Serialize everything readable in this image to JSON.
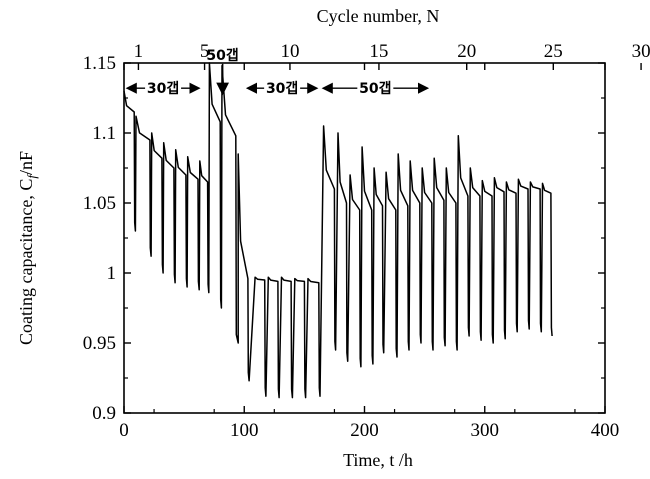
{
  "chart_data": {
    "type": "line",
    "title": "",
    "xlabel": "Time, t /h",
    "ylabel": "Coating capacitance, C_f/nF",
    "top_xlabel": "Cycle number, N",
    "xlim": [
      0,
      400
    ],
    "ylim": [
      0.9,
      1.15
    ],
    "x_ticks": [
      0,
      100,
      200,
      300,
      400
    ],
    "x_tick_labels": [
      "0",
      "100",
      "200",
      "300",
      "400"
    ],
    "y_ticks": [
      0.9,
      0.95,
      1.0,
      1.05,
      1.1,
      1.15
    ],
    "y_tick_labels": [
      "0.9",
      "0.95",
      "1",
      "1.05",
      "1.1",
      "1.15"
    ],
    "top_ticks": [
      {
        "label": "1",
        "x": 12
      },
      {
        "label": "5",
        "x": 67
      },
      {
        "label": "10",
        "x": 138
      },
      {
        "label": "15",
        "x": 212
      },
      {
        "label": "20",
        "x": 285
      },
      {
        "label": "25",
        "x": 357
      },
      {
        "label": "30",
        "x": 430
      }
    ],
    "annotations": [
      {
        "text": "30갭",
        "x_from": 0,
        "x_to": 65,
        "y": 1.132
      },
      {
        "text": "50갭",
        "x": 82,
        "y": 1.148,
        "arrow_down_to": 1.128
      },
      {
        "text": "30갭",
        "x_from": 100,
        "x_to": 163,
        "y": 1.132
      },
      {
        "text": "50갭",
        "x_from": 163,
        "x_to": 255,
        "y": 1.132
      }
    ],
    "series": [
      {
        "cycles": [
          {
            "x_start": 0,
            "x_end": 8.5,
            "y_high": 1.13,
            "y_end": 1.115,
            "y_low": 1.03,
            "x_low_end": 9.5
          },
          {
            "x_start": 10,
            "x_end": 21.5,
            "y_high": 1.112,
            "y_end": 1.095,
            "y_low": 1.012,
            "x_low_end": 22.5
          },
          {
            "x_start": 23,
            "x_end": 31.5,
            "y_high": 1.1,
            "y_end": 1.082,
            "y_low": 1.0,
            "x_low_end": 32.5
          },
          {
            "x_start": 33,
            "x_end": 41.5,
            "y_high": 1.093,
            "y_end": 1.075,
            "y_low": 0.993,
            "x_low_end": 42.5
          },
          {
            "x_start": 43,
            "x_end": 51.5,
            "y_high": 1.088,
            "y_end": 1.07,
            "y_low": 0.99,
            "x_low_end": 52.5
          },
          {
            "x_start": 53,
            "x_end": 61.5,
            "y_high": 1.083,
            "y_end": 1.067,
            "y_low": 0.988,
            "x_low_end": 62.5
          },
          {
            "x_start": 63,
            "x_end": 69.5,
            "y_high": 1.08,
            "y_end": 1.065,
            "y_low": 0.986,
            "x_low_end": 70.5
          },
          {
            "x_start": 71,
            "x_end": 80,
            "y_high": 1.15,
            "y_end": 1.108,
            "y_low": 0.975,
            "x_low_end": 81
          },
          {
            "x_start": 81.5,
            "x_end": 93,
            "y_high": 1.148,
            "y_end": 1.098,
            "y_low": 0.95,
            "x_low_end": 95
          },
          {
            "x_start": 95,
            "x_end": 103,
            "y_high": 1.085,
            "y_end": 0.996,
            "y_low": 0.923,
            "x_low_end": 104
          },
          {
            "x_start": 109,
            "x_end": 117,
            "y_high": 0.997,
            "y_end": 0.995,
            "y_low": 0.912,
            "x_low_end": 118
          },
          {
            "x_start": 120,
            "x_end": 128,
            "y_high": 0.997,
            "y_end": 0.994,
            "y_low": 0.911,
            "x_low_end": 129
          },
          {
            "x_start": 131,
            "x_end": 139,
            "y_high": 0.997,
            "y_end": 0.994,
            "y_low": 0.911,
            "x_low_end": 140
          },
          {
            "x_start": 142,
            "x_end": 150,
            "y_high": 0.996,
            "y_end": 0.994,
            "y_low": 0.911,
            "x_low_end": 151
          },
          {
            "x_start": 153,
            "x_end": 162,
            "y_high": 0.996,
            "y_end": 0.993,
            "y_low": 0.912,
            "x_low_end": 163
          },
          {
            "x_start": 166,
            "x_end": 175,
            "y_high": 1.105,
            "y_end": 1.06,
            "y_low": 0.945,
            "x_low_end": 176
          },
          {
            "x_start": 178,
            "x_end": 185,
            "y_high": 1.1,
            "y_end": 1.05,
            "y_low": 0.937,
            "x_low_end": 186
          },
          {
            "x_start": 188,
            "x_end": 196,
            "y_high": 1.07,
            "y_end": 1.045,
            "y_low": 0.933,
            "x_low_end": 197
          },
          {
            "x_start": 198,
            "x_end": 206,
            "y_high": 1.09,
            "y_end": 1.045,
            "y_low": 0.935,
            "x_low_end": 207
          },
          {
            "x_start": 208,
            "x_end": 215,
            "y_high": 1.075,
            "y_end": 1.048,
            "y_low": 0.943,
            "x_low_end": 216
          },
          {
            "x_start": 218,
            "x_end": 226,
            "y_high": 1.072,
            "y_end": 1.045,
            "y_low": 0.94,
            "x_low_end": 227
          },
          {
            "x_start": 228,
            "x_end": 236,
            "y_high": 1.085,
            "y_end": 1.048,
            "y_low": 0.945,
            "x_low_end": 237
          },
          {
            "x_start": 238,
            "x_end": 246,
            "y_high": 1.08,
            "y_end": 1.05,
            "y_low": 0.95,
            "x_low_end": 247
          },
          {
            "x_start": 248,
            "x_end": 256,
            "y_high": 1.075,
            "y_end": 1.05,
            "y_low": 0.945,
            "x_low_end": 257
          },
          {
            "x_start": 258,
            "x_end": 266,
            "y_high": 1.082,
            "y_end": 1.052,
            "y_low": 0.948,
            "x_low_end": 267
          },
          {
            "x_start": 268,
            "x_end": 276,
            "y_high": 1.075,
            "y_end": 1.05,
            "y_low": 0.945,
            "x_low_end": 277
          },
          {
            "x_start": 278,
            "x_end": 286,
            "y_high": 1.098,
            "y_end": 1.055,
            "y_low": 0.955,
            "x_low_end": 287
          },
          {
            "x_start": 288,
            "x_end": 296,
            "y_high": 1.075,
            "y_end": 1.055,
            "y_low": 0.952,
            "x_low_end": 297
          },
          {
            "x_start": 298,
            "x_end": 306,
            "y_high": 1.066,
            "y_end": 1.055,
            "y_low": 0.95,
            "x_low_end": 307
          },
          {
            "x_start": 308,
            "x_end": 316,
            "y_high": 1.068,
            "y_end": 1.058,
            "y_low": 0.953,
            "x_low_end": 317
          },
          {
            "x_start": 318,
            "x_end": 326,
            "y_high": 1.065,
            "y_end": 1.057,
            "y_low": 0.958,
            "x_low_end": 327
          },
          {
            "x_start": 328,
            "x_end": 336,
            "y_high": 1.067,
            "y_end": 1.06,
            "y_low": 0.96,
            "x_low_end": 337
          },
          {
            "x_start": 338,
            "x_end": 346,
            "y_high": 1.065,
            "y_end": 1.06,
            "y_low": 0.958,
            "x_low_end": 347
          },
          {
            "x_start": 348,
            "x_end": 355,
            "y_high": 1.064,
            "y_end": 1.057,
            "y_low": 0.955,
            "x_low_end": 356
          }
        ]
      }
    ],
    "grid": false,
    "legend": "none"
  },
  "colors": {
    "line": "#000000",
    "axis": "#000000",
    "background": "#ffffff"
  }
}
